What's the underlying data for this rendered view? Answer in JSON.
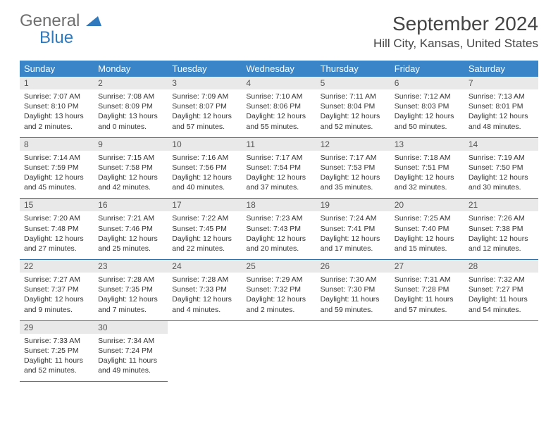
{
  "logo": {
    "general": "General",
    "blue": "Blue"
  },
  "title": "September 2024",
  "location": "Hill City, Kansas, United States",
  "colors": {
    "header_bg": "#3a85c8",
    "header_text": "#ffffff",
    "daynum_bg": "#e9e9e9",
    "row_border": "#2f6fa8",
    "logo_gray": "#6f6f6f",
    "logo_blue": "#2f7abf",
    "page_bg": "#ffffff",
    "text": "#333333"
  },
  "typography": {
    "title_fontsize": 28,
    "location_fontsize": 17,
    "weekday_fontsize": 13,
    "daynum_fontsize": 12,
    "cell_fontsize": 10.5
  },
  "weekdays": [
    "Sunday",
    "Monday",
    "Tuesday",
    "Wednesday",
    "Thursday",
    "Friday",
    "Saturday"
  ],
  "weeks": [
    {
      "days": [
        {
          "n": "1",
          "sunrise": "7:07 AM",
          "sunset": "8:10 PM",
          "day_h": "13",
          "day_m": "2"
        },
        {
          "n": "2",
          "sunrise": "7:08 AM",
          "sunset": "8:09 PM",
          "day_h": "13",
          "day_m": "0"
        },
        {
          "n": "3",
          "sunrise": "7:09 AM",
          "sunset": "8:07 PM",
          "day_h": "12",
          "day_m": "57"
        },
        {
          "n": "4",
          "sunrise": "7:10 AM",
          "sunset": "8:06 PM",
          "day_h": "12",
          "day_m": "55"
        },
        {
          "n": "5",
          "sunrise": "7:11 AM",
          "sunset": "8:04 PM",
          "day_h": "12",
          "day_m": "52"
        },
        {
          "n": "6",
          "sunrise": "7:12 AM",
          "sunset": "8:03 PM",
          "day_h": "12",
          "day_m": "50"
        },
        {
          "n": "7",
          "sunrise": "7:13 AM",
          "sunset": "8:01 PM",
          "day_h": "12",
          "day_m": "48"
        }
      ]
    },
    {
      "days": [
        {
          "n": "8",
          "sunrise": "7:14 AM",
          "sunset": "7:59 PM",
          "day_h": "12",
          "day_m": "45"
        },
        {
          "n": "9",
          "sunrise": "7:15 AM",
          "sunset": "7:58 PM",
          "day_h": "12",
          "day_m": "42"
        },
        {
          "n": "10",
          "sunrise": "7:16 AM",
          "sunset": "7:56 PM",
          "day_h": "12",
          "day_m": "40"
        },
        {
          "n": "11",
          "sunrise": "7:17 AM",
          "sunset": "7:54 PM",
          "day_h": "12",
          "day_m": "37"
        },
        {
          "n": "12",
          "sunrise": "7:17 AM",
          "sunset": "7:53 PM",
          "day_h": "12",
          "day_m": "35"
        },
        {
          "n": "13",
          "sunrise": "7:18 AM",
          "sunset": "7:51 PM",
          "day_h": "12",
          "day_m": "32"
        },
        {
          "n": "14",
          "sunrise": "7:19 AM",
          "sunset": "7:50 PM",
          "day_h": "12",
          "day_m": "30"
        }
      ]
    },
    {
      "days": [
        {
          "n": "15",
          "sunrise": "7:20 AM",
          "sunset": "7:48 PM",
          "day_h": "12",
          "day_m": "27"
        },
        {
          "n": "16",
          "sunrise": "7:21 AM",
          "sunset": "7:46 PM",
          "day_h": "12",
          "day_m": "25"
        },
        {
          "n": "17",
          "sunrise": "7:22 AM",
          "sunset": "7:45 PM",
          "day_h": "12",
          "day_m": "22"
        },
        {
          "n": "18",
          "sunrise": "7:23 AM",
          "sunset": "7:43 PM",
          "day_h": "12",
          "day_m": "20"
        },
        {
          "n": "19",
          "sunrise": "7:24 AM",
          "sunset": "7:41 PM",
          "day_h": "12",
          "day_m": "17"
        },
        {
          "n": "20",
          "sunrise": "7:25 AM",
          "sunset": "7:40 PM",
          "day_h": "12",
          "day_m": "15"
        },
        {
          "n": "21",
          "sunrise": "7:26 AM",
          "sunset": "7:38 PM",
          "day_h": "12",
          "day_m": "12"
        }
      ]
    },
    {
      "days": [
        {
          "n": "22",
          "sunrise": "7:27 AM",
          "sunset": "7:37 PM",
          "day_h": "12",
          "day_m": "9"
        },
        {
          "n": "23",
          "sunrise": "7:28 AM",
          "sunset": "7:35 PM",
          "day_h": "12",
          "day_m": "7"
        },
        {
          "n": "24",
          "sunrise": "7:28 AM",
          "sunset": "7:33 PM",
          "day_h": "12",
          "day_m": "4"
        },
        {
          "n": "25",
          "sunrise": "7:29 AM",
          "sunset": "7:32 PM",
          "day_h": "12",
          "day_m": "2"
        },
        {
          "n": "26",
          "sunrise": "7:30 AM",
          "sunset": "7:30 PM",
          "day_h": "11",
          "day_m": "59"
        },
        {
          "n": "27",
          "sunrise": "7:31 AM",
          "sunset": "7:28 PM",
          "day_h": "11",
          "day_m": "57"
        },
        {
          "n": "28",
          "sunrise": "7:32 AM",
          "sunset": "7:27 PM",
          "day_h": "11",
          "day_m": "54"
        }
      ]
    },
    {
      "days": [
        {
          "n": "29",
          "sunrise": "7:33 AM",
          "sunset": "7:25 PM",
          "day_h": "11",
          "day_m": "52"
        },
        {
          "n": "30",
          "sunrise": "7:34 AM",
          "sunset": "7:24 PM",
          "day_h": "11",
          "day_m": "49"
        },
        null,
        null,
        null,
        null,
        null
      ]
    }
  ],
  "labels": {
    "sunrise": "Sunrise: ",
    "sunset": "Sunset: ",
    "daylight_prefix": "Daylight: ",
    "hours_word": " hours and ",
    "minutes_word": " minutes."
  }
}
